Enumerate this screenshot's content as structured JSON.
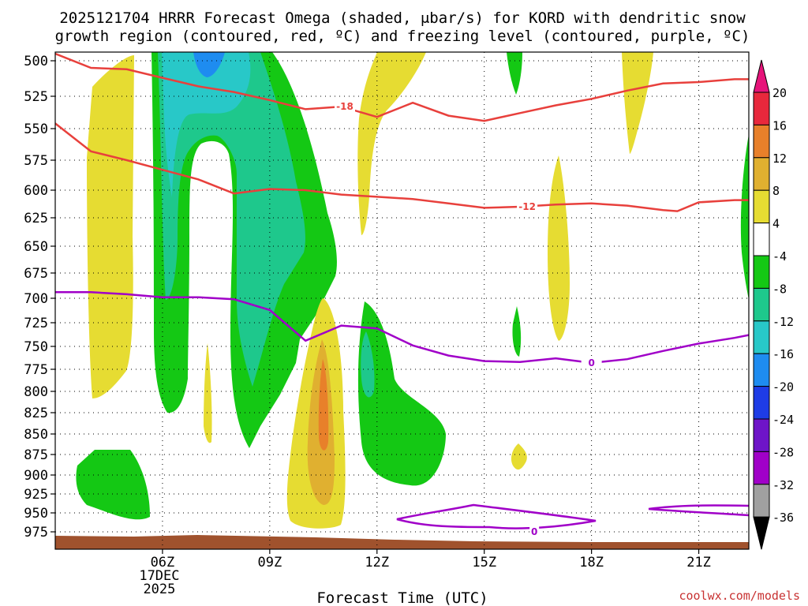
{
  "chart_data": {
    "type": "time-height cross section",
    "title_line1": "2025121704 HRRR Forecast Omega (shaded, μbar/s) for KORD with dendritic snow",
    "title_line2": "growth region (contoured, red, ºC) and freezing level (contoured, purple, ºC)",
    "xlabel": "Forecast Time (UTC)",
    "credit": "coolwx.com/models",
    "x_range_hours": [
      3,
      22.4
    ],
    "x_ticks": [
      {
        "hour": 6,
        "label": "06Z",
        "sub1": "17DEC",
        "sub2": "2025"
      },
      {
        "hour": 9,
        "label": "09Z"
      },
      {
        "hour": 12,
        "label": "12Z"
      },
      {
        "hour": 15,
        "label": "15Z"
      },
      {
        "hour": 18,
        "label": "18Z"
      },
      {
        "hour": 21,
        "label": "21Z"
      }
    ],
    "y_levels": [
      500,
      525,
      550,
      575,
      600,
      625,
      650,
      675,
      700,
      725,
      750,
      775,
      800,
      825,
      850,
      875,
      900,
      925,
      950,
      975
    ],
    "y_labels": [
      "500",
      "525",
      "550",
      "575",
      "600",
      "625",
      "650",
      "675",
      "700",
      "725",
      "750",
      "775",
      "800",
      "825",
      "850",
      "875",
      "900",
      "925",
      "950",
      "975"
    ],
    "colorbar": {
      "labels": [
        "20",
        "16",
        "12",
        "8",
        "4",
        "-4",
        "-8",
        "-12",
        "-16",
        "-20",
        "-24",
        "-28",
        "-32",
        "-36"
      ],
      "colors": {
        "p16_20": "#e8283c",
        "p12_16": "#e8802a",
        "p8_12": "#e0b030",
        "p4_8": "#e6dc32",
        "m4_4": "#ffffff",
        "m8_m4": "#14c814",
        "m12_m8": "#1ec88c",
        "m16_m12": "#28c8c8",
        "m20_m16": "#1e8cf0",
        "m24_m20": "#1e3ce6",
        "m28_m24": "#6e14c8",
        "m32_m28": "#a000c8",
        "m36_m32": "#a0a0a0",
        "top": "#e6147a",
        "bottom": "#000000"
      }
    },
    "contours": {
      "dgz_minus18": {
        "label": "-18",
        "color": "#e8403c",
        "points": [
          [
            3,
            495
          ],
          [
            4.0,
            505
          ],
          [
            5.0,
            506
          ],
          [
            6.0,
            512
          ],
          [
            7.0,
            518
          ],
          [
            8.0,
            522
          ],
          [
            9.0,
            528
          ],
          [
            10.0,
            535
          ],
          [
            11.0,
            533
          ],
          [
            12.0,
            541
          ],
          [
            13.0,
            530
          ],
          [
            14.0,
            540
          ],
          [
            15.0,
            544
          ],
          [
            16.0,
            538
          ],
          [
            17.0,
            532
          ],
          [
            18.0,
            527
          ],
          [
            19.0,
            521
          ],
          [
            20.0,
            516
          ],
          [
            21.0,
            515
          ],
          [
            22.0,
            513
          ],
          [
            22.4,
            513
          ]
        ]
      },
      "dgz_minus12": {
        "label": "-12",
        "color": "#e8403c",
        "points": [
          [
            3,
            546
          ],
          [
            4.0,
            568
          ],
          [
            5.0,
            575
          ],
          [
            6.0,
            583
          ],
          [
            7.0,
            591
          ],
          [
            8.0,
            603
          ],
          [
            9.0,
            599
          ],
          [
            10.0,
            600
          ],
          [
            11.0,
            604
          ],
          [
            12.0,
            606
          ],
          [
            13.0,
            608
          ],
          [
            14.0,
            612
          ],
          [
            15.0,
            616
          ],
          [
            16.0,
            615
          ],
          [
            17.0,
            613
          ],
          [
            18.0,
            612
          ],
          [
            19.0,
            614
          ],
          [
            20.0,
            618
          ],
          [
            20.4,
            619
          ],
          [
            21.0,
            611
          ],
          [
            22.0,
            609
          ],
          [
            22.4,
            609
          ]
        ]
      },
      "freezing_0": {
        "label": "0",
        "color": "#a000c8",
        "points": [
          [
            3,
            694
          ],
          [
            4.0,
            694
          ],
          [
            5.0,
            696
          ],
          [
            6.0,
            699
          ],
          [
            7.0,
            699
          ],
          [
            8.0,
            701
          ],
          [
            9.0,
            712
          ],
          [
            10.0,
            744
          ],
          [
            11.0,
            728
          ],
          [
            12.0,
            731
          ],
          [
            13.0,
            749
          ],
          [
            14.0,
            760
          ],
          [
            15.0,
            766
          ],
          [
            16.0,
            767
          ],
          [
            17.0,
            763
          ],
          [
            18.0,
            768
          ],
          [
            19.0,
            764
          ],
          [
            20.0,
            755
          ],
          [
            21.0,
            747
          ],
          [
            22.0,
            741
          ],
          [
            22.4,
            738
          ]
        ]
      },
      "freezing_0_low": {
        "label": "0",
        "color": "#a000c8"
      }
    }
  }
}
